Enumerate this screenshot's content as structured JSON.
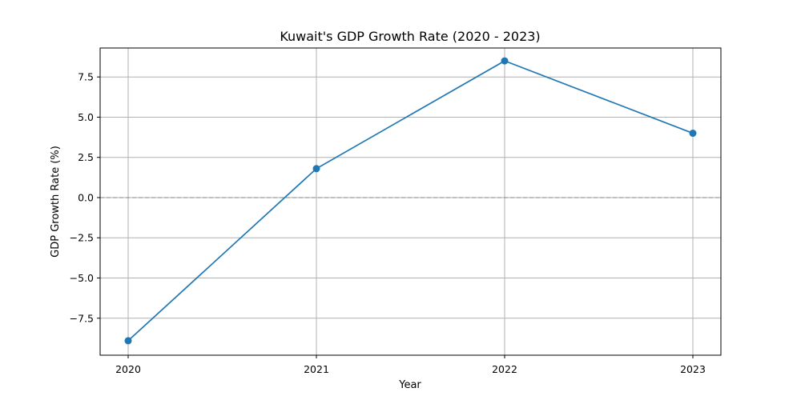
{
  "chart_data": {
    "type": "line",
    "title": "Kuwait's GDP Growth Rate (2020 - 2023)",
    "xlabel": "Year",
    "ylabel": "GDP Growth Rate (%)",
    "categories": [
      "2020",
      "2021",
      "2022",
      "2023"
    ],
    "series": [
      {
        "values": [
          -8.9,
          1.8,
          8.5,
          4.0
        ],
        "color": "#1f77b4",
        "marker": "circle"
      }
    ],
    "yticks": [
      -7.5,
      -5.0,
      -2.5,
      0.0,
      2.5,
      5.0,
      7.5
    ],
    "ytick_labels": [
      "−7.5",
      "−5.0",
      "−2.5",
      "0.0",
      "2.5",
      "5.0",
      "7.5"
    ],
    "ylim": [
      -9.8,
      9.3
    ],
    "grid": true,
    "reference_line": {
      "y": 0,
      "style": "dashed",
      "color": "#808080"
    }
  }
}
